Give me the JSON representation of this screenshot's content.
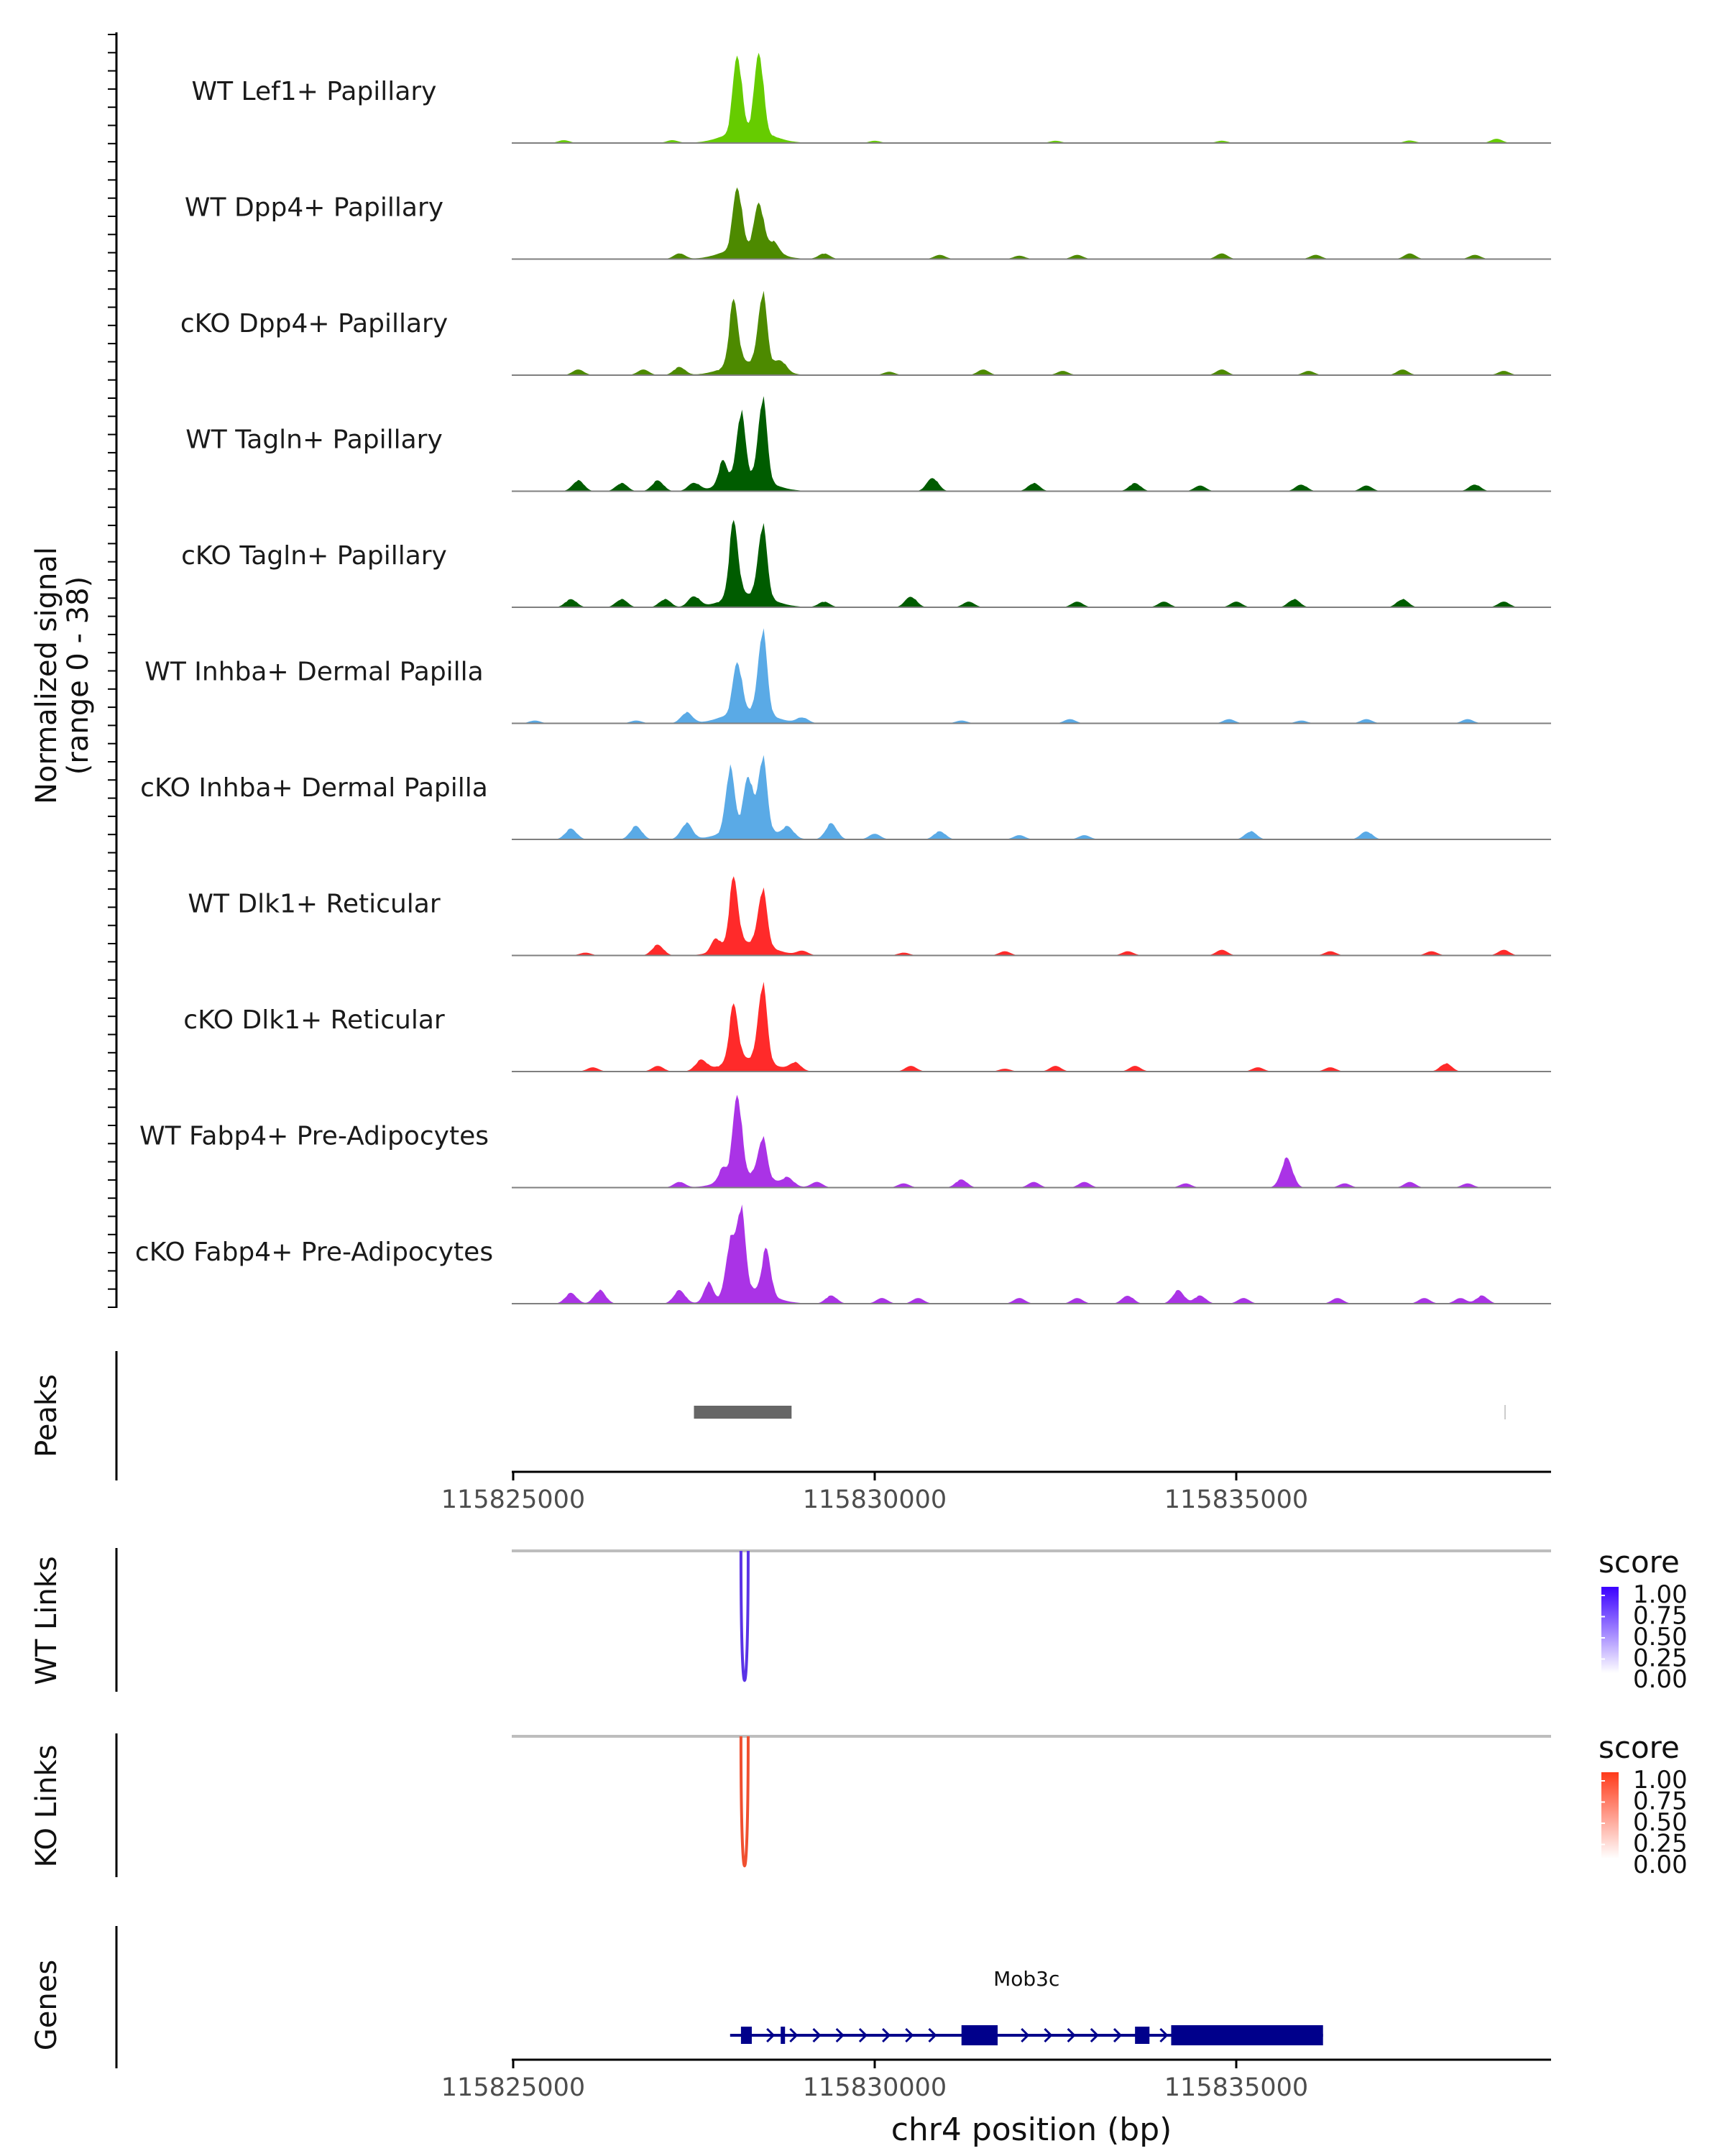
{
  "chart_data": {
    "type": "area",
    "title": "",
    "coverage": {
      "ylabel_line1": "Normalized signal",
      "ylabel_line2": "(range 0 - 38)",
      "ylim": [
        0,
        38
      ],
      "xlim": [
        115825000,
        115839300
      ],
      "tracks": [
        {
          "name": "WT Lef1+ Papillary",
          "color": "#66cc00",
          "peaks": [
            [
              115828100,
              34
            ],
            [
              115828400,
              35
            ]
          ],
          "baseline": [
            [
              115825700,
              1
            ],
            [
              115827200,
              1
            ],
            [
              115830000,
              0.8
            ],
            [
              115832500,
              0.8
            ],
            [
              115834800,
              0.8
            ],
            [
              115837400,
              0.9
            ],
            [
              115838600,
              1.5
            ]
          ]
        },
        {
          "name": "WT Dpp4+ Papillary",
          "color": "#4d8a00",
          "peaks": [
            [
              115828100,
              28
            ],
            [
              115828400,
              22
            ]
          ],
          "baseline": [
            [
              115827300,
              2
            ],
            [
              115828600,
              4
            ],
            [
              115829300,
              2
            ],
            [
              115830900,
              1.5
            ],
            [
              115832000,
              1.2
            ],
            [
              115832800,
              1.5
            ],
            [
              115834800,
              2
            ],
            [
              115836100,
              1.5
            ],
            [
              115837400,
              2
            ],
            [
              115838300,
              1.5
            ]
          ]
        },
        {
          "name": "cKO Dpp4+ Papillary",
          "color": "#4d8a00",
          "peaks": [
            [
              115828050,
              29
            ],
            [
              115828450,
              32
            ]
          ],
          "baseline": [
            [
              115825900,
              2
            ],
            [
              115826800,
              2
            ],
            [
              115827300,
              3
            ],
            [
              115828700,
              4
            ],
            [
              115830200,
              1.2
            ],
            [
              115831500,
              2
            ],
            [
              115832600,
              1.5
            ],
            [
              115834800,
              2
            ],
            [
              115836000,
              1.5
            ],
            [
              115837300,
              2
            ],
            [
              115838700,
              1.5
            ]
          ]
        },
        {
          "name": "WT Tagln+ Papillary",
          "color": "#005c00",
          "peaks": [
            [
              115827900,
              14
            ],
            [
              115828150,
              30
            ],
            [
              115828450,
              36
            ]
          ],
          "baseline": [
            [
              115825900,
              4
            ],
            [
              115826500,
              3
            ],
            [
              115827000,
              4
            ],
            [
              115827500,
              3
            ],
            [
              115830800,
              5
            ],
            [
              115832200,
              3
            ],
            [
              115833600,
              3
            ],
            [
              115834500,
              2
            ],
            [
              115835900,
              2.5
            ],
            [
              115836800,
              2
            ],
            [
              115838300,
              2.5
            ]
          ]
        },
        {
          "name": "cKO Tagln+ Papillary",
          "color": "#005c00",
          "peaks": [
            [
              115828050,
              33
            ],
            [
              115828450,
              32
            ]
          ],
          "baseline": [
            [
              115825800,
              3
            ],
            [
              115826500,
              3
            ],
            [
              115827100,
              3
            ],
            [
              115827500,
              4
            ],
            [
              115829300,
              2
            ],
            [
              115830500,
              4
            ],
            [
              115831300,
              2
            ],
            [
              115832800,
              2
            ],
            [
              115834000,
              2
            ],
            [
              115835000,
              2
            ],
            [
              115835800,
              3
            ],
            [
              115837300,
              3
            ],
            [
              115838700,
              2
            ]
          ]
        },
        {
          "name": "WT Inhba+ Dermal Papilla",
          "color": "#5aaae6",
          "peaks": [
            [
              115828100,
              24
            ],
            [
              115828450,
              36
            ]
          ],
          "baseline": [
            [
              115825300,
              1
            ],
            [
              115826700,
              1
            ],
            [
              115827400,
              4
            ],
            [
              115829000,
              2
            ],
            [
              115831200,
              1
            ],
            [
              115832700,
              1.5
            ],
            [
              115834900,
              1.5
            ],
            [
              115835900,
              1
            ],
            [
              115836800,
              1.5
            ],
            [
              115838200,
              1.5
            ]
          ]
        },
        {
          "name": "cKO Inhba+ Dermal Papilla",
          "color": "#5aaae6",
          "peaks": [
            [
              115828000,
              28
            ],
            [
              115828250,
              24
            ],
            [
              115828450,
              32
            ]
          ],
          "baseline": [
            [
              115825800,
              4
            ],
            [
              115826700,
              5
            ],
            [
              115827400,
              6
            ],
            [
              115828800,
              4
            ],
            [
              115829400,
              6
            ],
            [
              115830000,
              2
            ],
            [
              115830900,
              3
            ],
            [
              115832000,
              1.5
            ],
            [
              115832900,
              1.5
            ],
            [
              115835200,
              3
            ],
            [
              115836800,
              3
            ]
          ]
        },
        {
          "name": "WT Dlk1+ Reticular",
          "color": "#ff2a2a",
          "peaks": [
            [
              115827800,
              10
            ],
            [
              115828050,
              30
            ],
            [
              115828450,
              26
            ]
          ],
          "baseline": [
            [
              115826000,
              1
            ],
            [
              115827000,
              4
            ],
            [
              115829000,
              1.5
            ],
            [
              115830400,
              1
            ],
            [
              115831800,
              1.5
            ],
            [
              115833500,
              1.5
            ],
            [
              115834800,
              2
            ],
            [
              115836300,
              1.5
            ],
            [
              115837700,
              1.5
            ],
            [
              115838700,
              2
            ]
          ]
        },
        {
          "name": "cKO Dlk1+ Reticular",
          "color": "#ff2a2a",
          "peaks": [
            [
              115828050,
              26
            ],
            [
              115828450,
              34
            ]
          ],
          "baseline": [
            [
              115826100,
              1.5
            ],
            [
              115827000,
              2
            ],
            [
              115827600,
              4
            ],
            [
              115828900,
              3
            ],
            [
              115830500,
              2
            ],
            [
              115831800,
              1
            ],
            [
              115832500,
              2
            ],
            [
              115833600,
              2
            ],
            [
              115835300,
              1.5
            ],
            [
              115836300,
              1.5
            ],
            [
              115837900,
              3
            ]
          ]
        },
        {
          "name": "WT Fabp4+ Pre-Adipocytes",
          "color": "#aa33e6",
          "peaks": [
            [
              115827900,
              10
            ],
            [
              115828100,
              36
            ],
            [
              115828450,
              20
            ]
          ],
          "baseline": [
            [
              115827300,
              2
            ],
            [
              115828800,
              3
            ],
            [
              115829200,
              2
            ],
            [
              115830400,
              1.5
            ],
            [
              115831200,
              3
            ],
            [
              115832200,
              2
            ],
            [
              115832900,
              2
            ],
            [
              115834300,
              1.5
            ],
            [
              115835700,
              11
            ],
            [
              115836500,
              1.5
            ],
            [
              115837400,
              2
            ],
            [
              115838200,
              1.5
            ]
          ]
        },
        {
          "name": "cKO Fabp4+ Pre-Adipocytes",
          "color": "#aa33e6",
          "peaks": [
            [
              115827700,
              12
            ],
            [
              115828000,
              24
            ],
            [
              115828150,
              36
            ],
            [
              115828500,
              22
            ]
          ],
          "baseline": [
            [
              115825800,
              4
            ],
            [
              115826200,
              5
            ],
            [
              115827300,
              5
            ],
            [
              115829400,
              3
            ],
            [
              115830100,
              2
            ],
            [
              115830600,
              2
            ],
            [
              115832000,
              2
            ],
            [
              115832800,
              2
            ],
            [
              115833500,
              3
            ],
            [
              115834200,
              5
            ],
            [
              115834500,
              3
            ],
            [
              115835100,
              2
            ],
            [
              115836400,
              2
            ],
            [
              115837600,
              2
            ],
            [
              115838100,
              2
            ],
            [
              115838400,
              3
            ]
          ]
        }
      ]
    },
    "peaks_track": {
      "label": "Peaks",
      "regions": [
        [
          115827500,
          115828850
        ]
      ]
    },
    "position_axis": {
      "ticks": [
        115825000,
        115830000,
        115835000
      ],
      "tick_labels": [
        "115825000",
        "115830000",
        "115835000"
      ],
      "xlabel": "chr4 position (bp)"
    },
    "link_tracks": [
      {
        "label": "WT Links",
        "color": "#5a33e6",
        "links": [
          [
            115828150,
            115828250,
            1.0
          ]
        ],
        "legend": {
          "title": "score",
          "ticks": [
            "1.00",
            "0.75",
            "0.50",
            "0.25",
            "0.00"
          ],
          "color_high": "#3a00ff",
          "color_low": "#ffffff"
        }
      },
      {
        "label": "KO Links",
        "color": "#f05030",
        "links": [
          [
            115828150,
            115828250,
            1.0
          ]
        ],
        "legend": {
          "title": "score",
          "ticks": [
            "1.00",
            "0.75",
            "0.50",
            "0.25",
            "0.00"
          ],
          "color_high": "#ff3a1a",
          "color_low": "#ffffff"
        }
      }
    ],
    "genes_track": {
      "label": "Genes",
      "color": "#00008b",
      "gene": {
        "name": "Mob3c",
        "start": 115828000,
        "end": 115836200,
        "exons": [
          [
            115828150,
            115828300
          ],
          [
            115828700,
            115828750
          ],
          [
            115831200,
            115831700
          ],
          [
            115833600,
            115833800
          ],
          [
            115834100,
            115836200
          ]
        ]
      }
    }
  }
}
